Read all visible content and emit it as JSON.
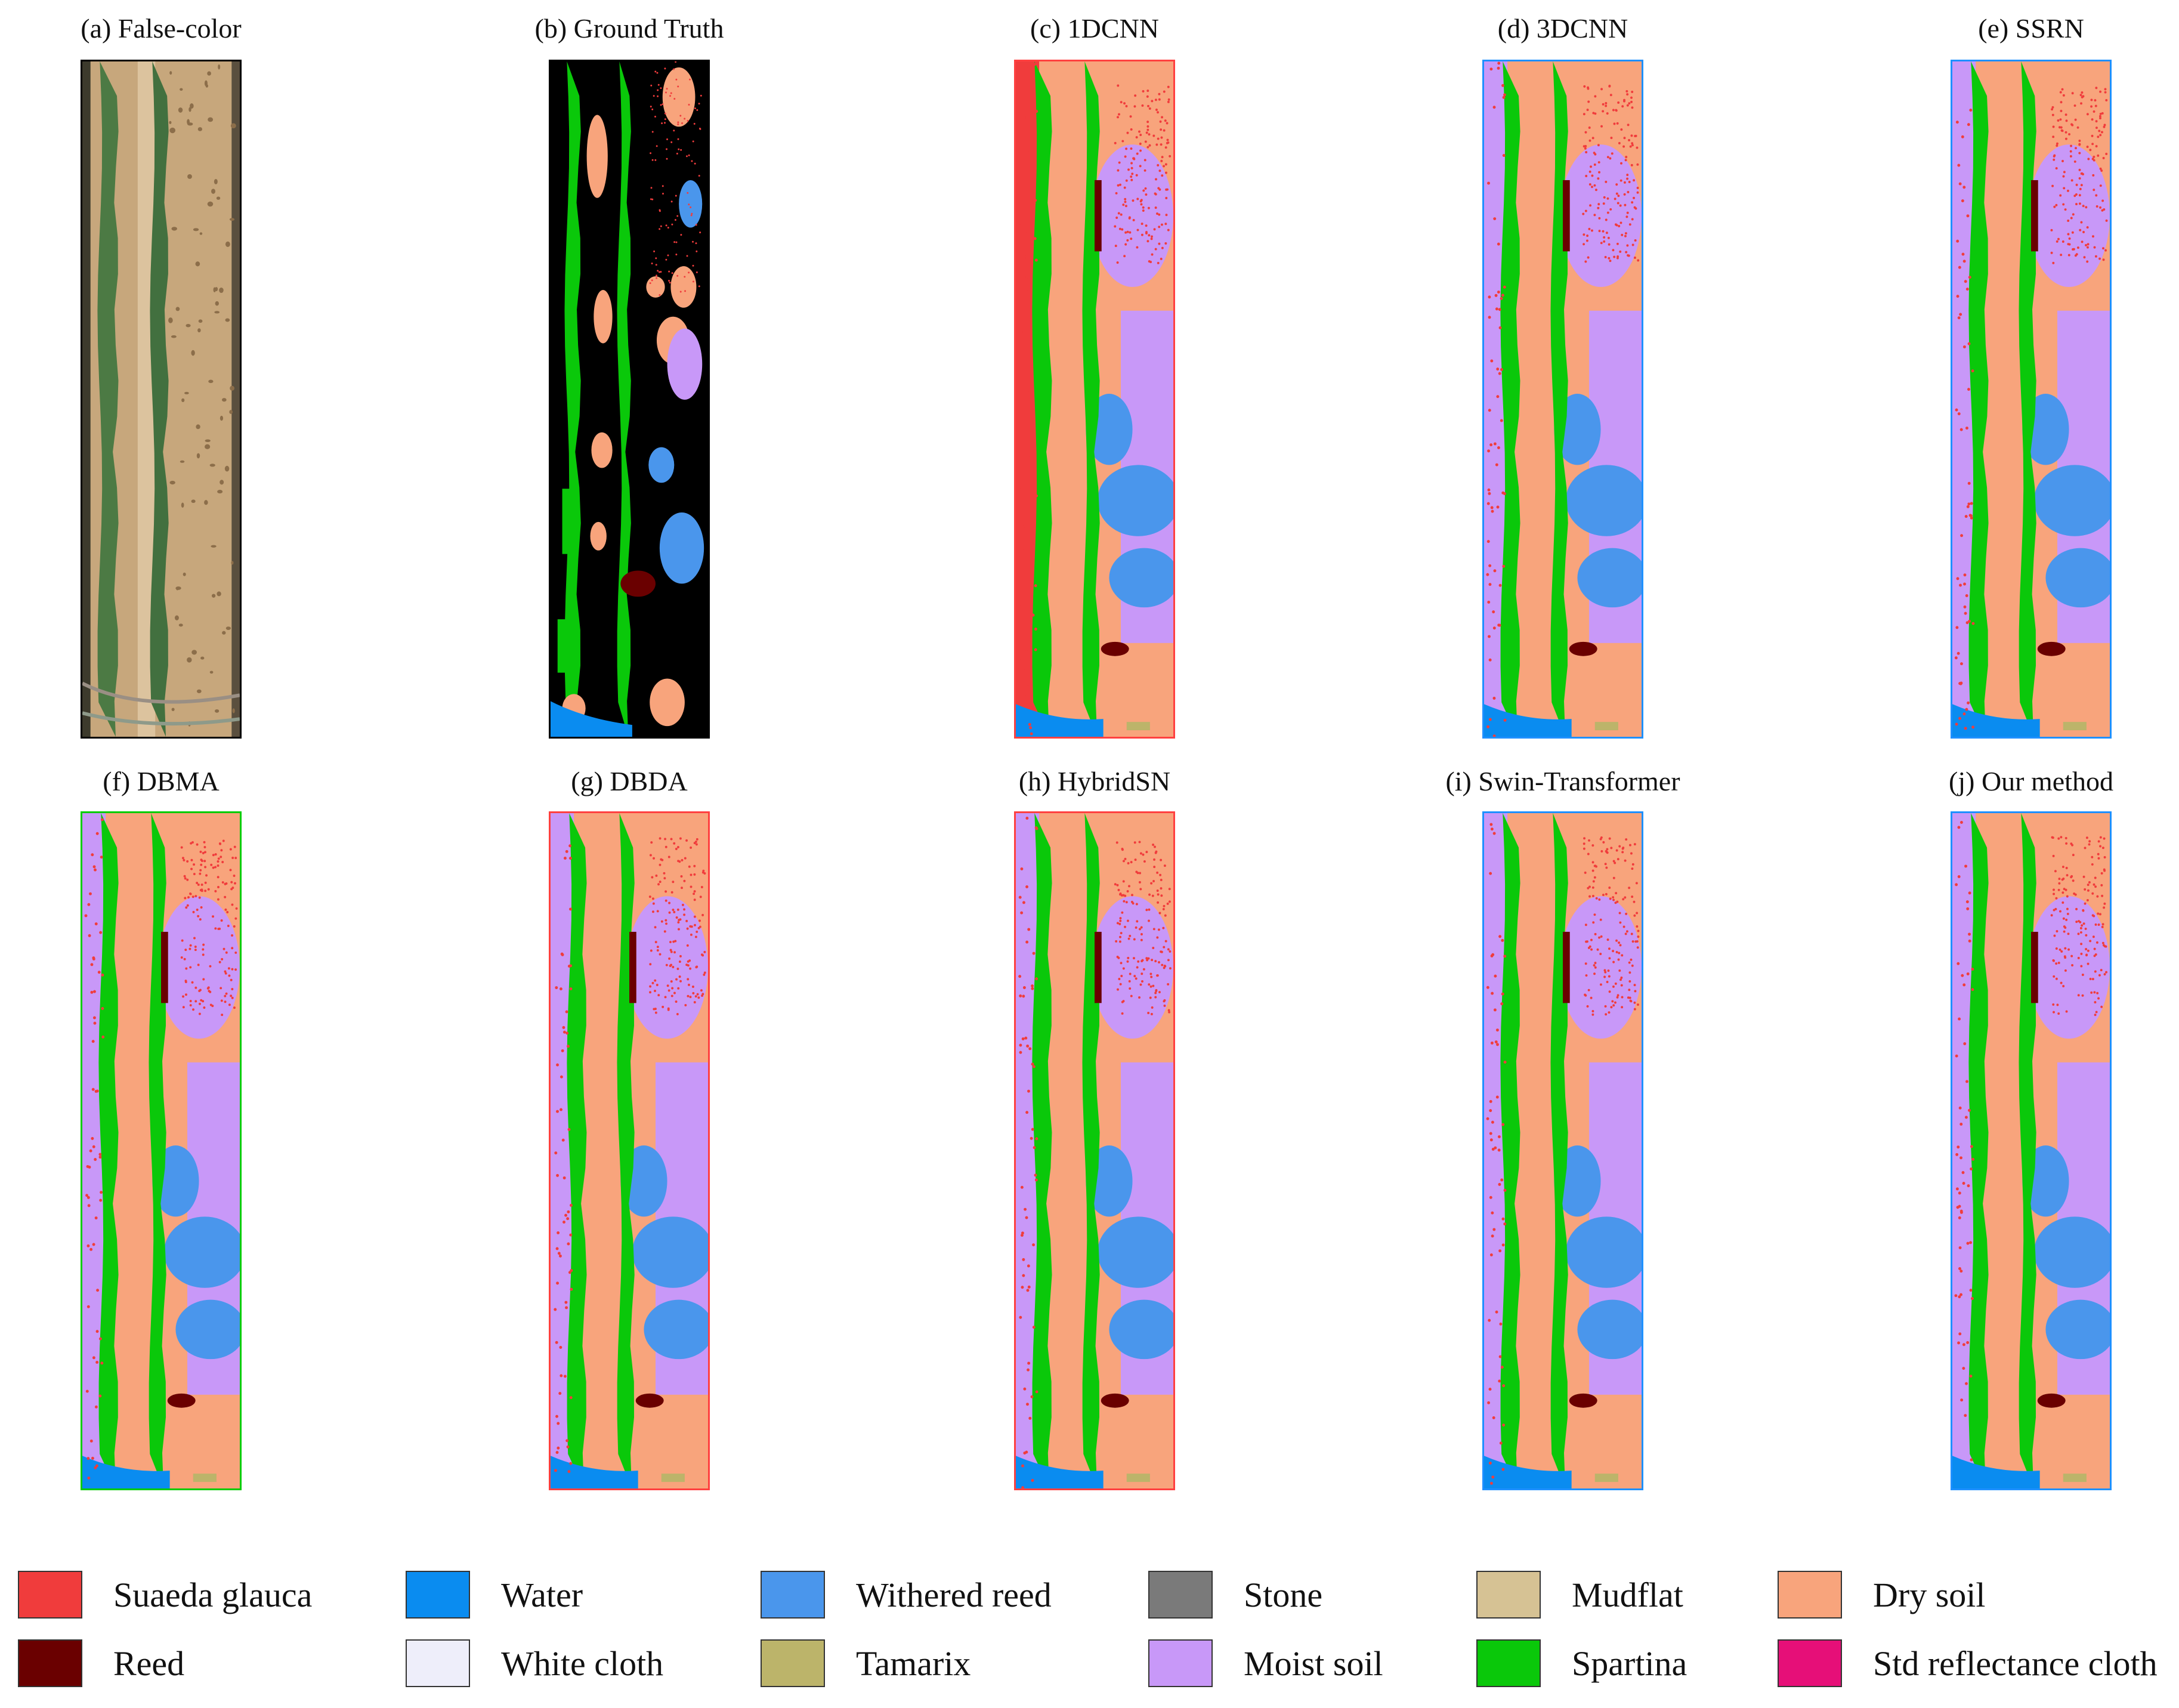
{
  "panels": [
    {
      "label": "(a) False-color",
      "kind": "false_color",
      "border": "#000000"
    },
    {
      "label": "(b) Ground Truth",
      "kind": "ground_truth",
      "border": "#000000"
    },
    {
      "label": "(c) 1DCNN",
      "kind": "classmap",
      "border": "#ff4040"
    },
    {
      "label": "(d) 3DCNN",
      "kind": "classmap",
      "border": "#1e90ff"
    },
    {
      "label": "(e) SSRN",
      "kind": "classmap",
      "border": "#1e90ff"
    },
    {
      "label": "(f) DBMA",
      "kind": "classmap",
      "border": "#00cc00"
    },
    {
      "label": "(g) DBDA",
      "kind": "classmap",
      "border": "#ff4040"
    },
    {
      "label": "(h) HybridSN",
      "kind": "classmap",
      "border": "#ff4040"
    },
    {
      "label": "(i) Swin-Transformer",
      "kind": "classmap",
      "border": "#1e90ff"
    },
    {
      "label": "(j) Our method",
      "kind": "classmap",
      "border": "#1e90ff"
    }
  ],
  "legend": [
    {
      "label": "Suaeda glauca",
      "color": "#f03c3c"
    },
    {
      "label": "Water",
      "color": "#0a8cf0"
    },
    {
      "label": "Withered reed",
      "color": "#4a96ec"
    },
    {
      "label": "Stone",
      "color": "#7a7a7a"
    },
    {
      "label": "Mudflat",
      "color": "#d6c294"
    },
    {
      "label": "Dry soil",
      "color": "#f8a47c"
    },
    {
      "label": "Reed",
      "color": "#6a0000"
    },
    {
      "label": "White cloth",
      "color": "#eeeefa"
    },
    {
      "label": "Tamarix",
      "color": "#bcb46a"
    },
    {
      "label": "Moist soil",
      "color": "#c898f8"
    },
    {
      "label": "Spartina",
      "color": "#0ac80a"
    },
    {
      "label": "Std reflectance cloth",
      "color": "#e60f78"
    }
  ]
}
